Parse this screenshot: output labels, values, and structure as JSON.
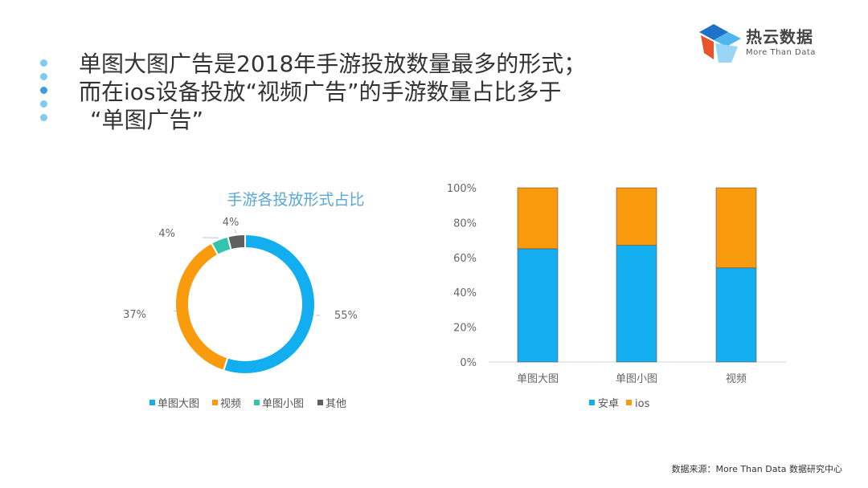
{
  "headline": {
    "line1": "单图大图广告是2018年手游投放数量最多的形式；",
    "line2": "而在ios设备投放“视频广告”的手游数量占比多于",
    "line3": "“单图广告”"
  },
  "logo": {
    "name": "热云数据",
    "tagline": "More Than Data"
  },
  "source": "数据来源：More Than Data 数据研究中心",
  "colors": {
    "blue": "#13aef0",
    "orange": "#fa9b0e",
    "teal": "#32c4ac",
    "gray": "#5f5f5f",
    "title": "#5aa6d6"
  },
  "chart_data": [
    {
      "type": "pie",
      "subtype": "donut",
      "title": "手游各投放形式占比",
      "categories": [
        "单图大图",
        "视频",
        "单图小图",
        "其他"
      ],
      "values": [
        55,
        37,
        4,
        4
      ],
      "labels": [
        "55%",
        "37%",
        "4%",
        "4%"
      ],
      "legend": "bottom"
    },
    {
      "type": "bar",
      "stacked": true,
      "percent": true,
      "categories": [
        "单图大图",
        "单图小图",
        "视频"
      ],
      "series": [
        {
          "name": "安卓",
          "values": [
            65,
            67,
            54
          ]
        },
        {
          "name": "ios",
          "values": [
            35,
            33,
            46
          ]
        }
      ],
      "ylim": [
        0,
        100
      ],
      "yticks": [
        "0%",
        "20%",
        "40%",
        "60%",
        "80%",
        "100%"
      ],
      "legend": "bottom"
    }
  ]
}
